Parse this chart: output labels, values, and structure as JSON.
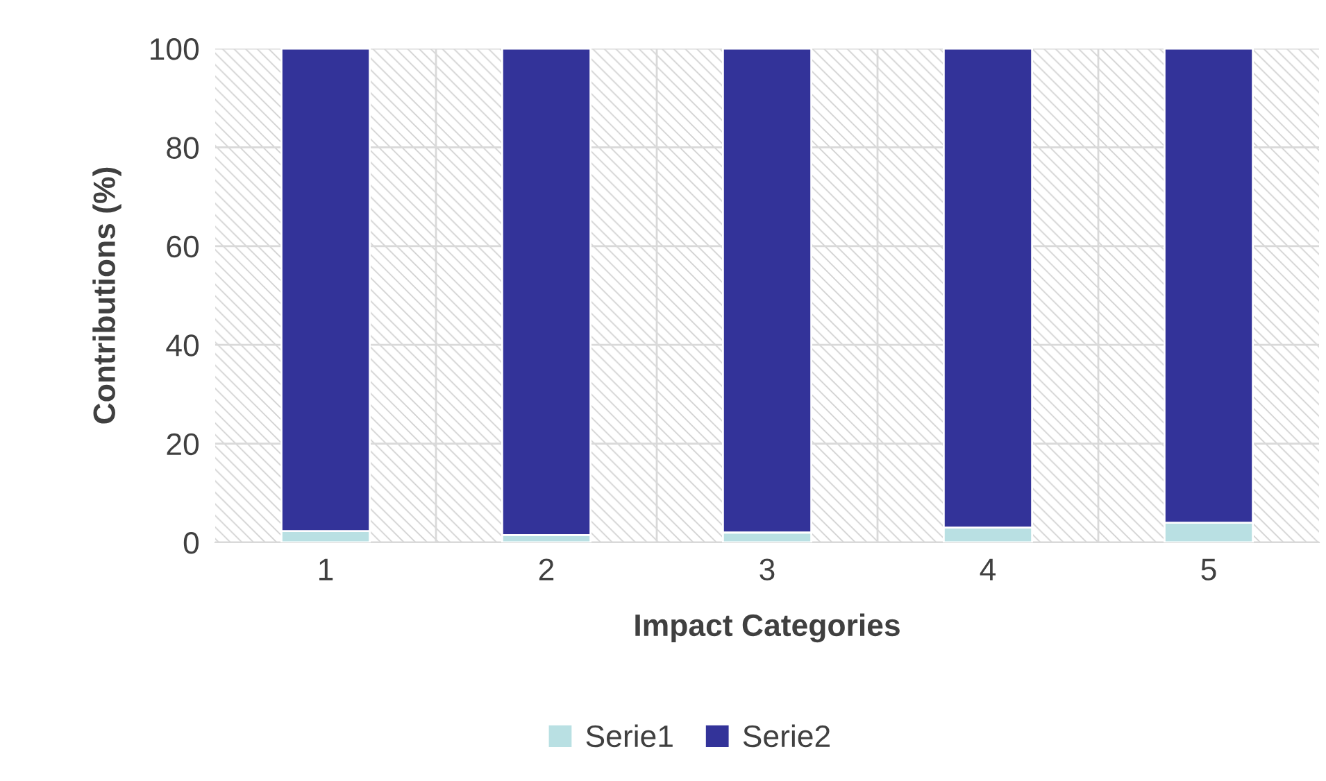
{
  "chart_data": {
    "type": "bar",
    "stacked": true,
    "xlabel": "Impact Categories",
    "ylabel": "Contributions (%)",
    "categories": [
      "1",
      "2",
      "3",
      "4",
      "5"
    ],
    "series": [
      {
        "name": "Serie1",
        "color": "#b9e0e3",
        "values": [
          2.3,
          1.5,
          2.0,
          3.0,
          4.0
        ]
      },
      {
        "name": "Serie2",
        "color": "#333399",
        "values": [
          97.7,
          98.5,
          98.0,
          97.0,
          96.0
        ]
      }
    ],
    "ylim": [
      0,
      100
    ],
    "yticks": [
      0,
      20,
      40,
      60,
      80,
      100
    ],
    "grid": true,
    "legend": "bottom"
  }
}
